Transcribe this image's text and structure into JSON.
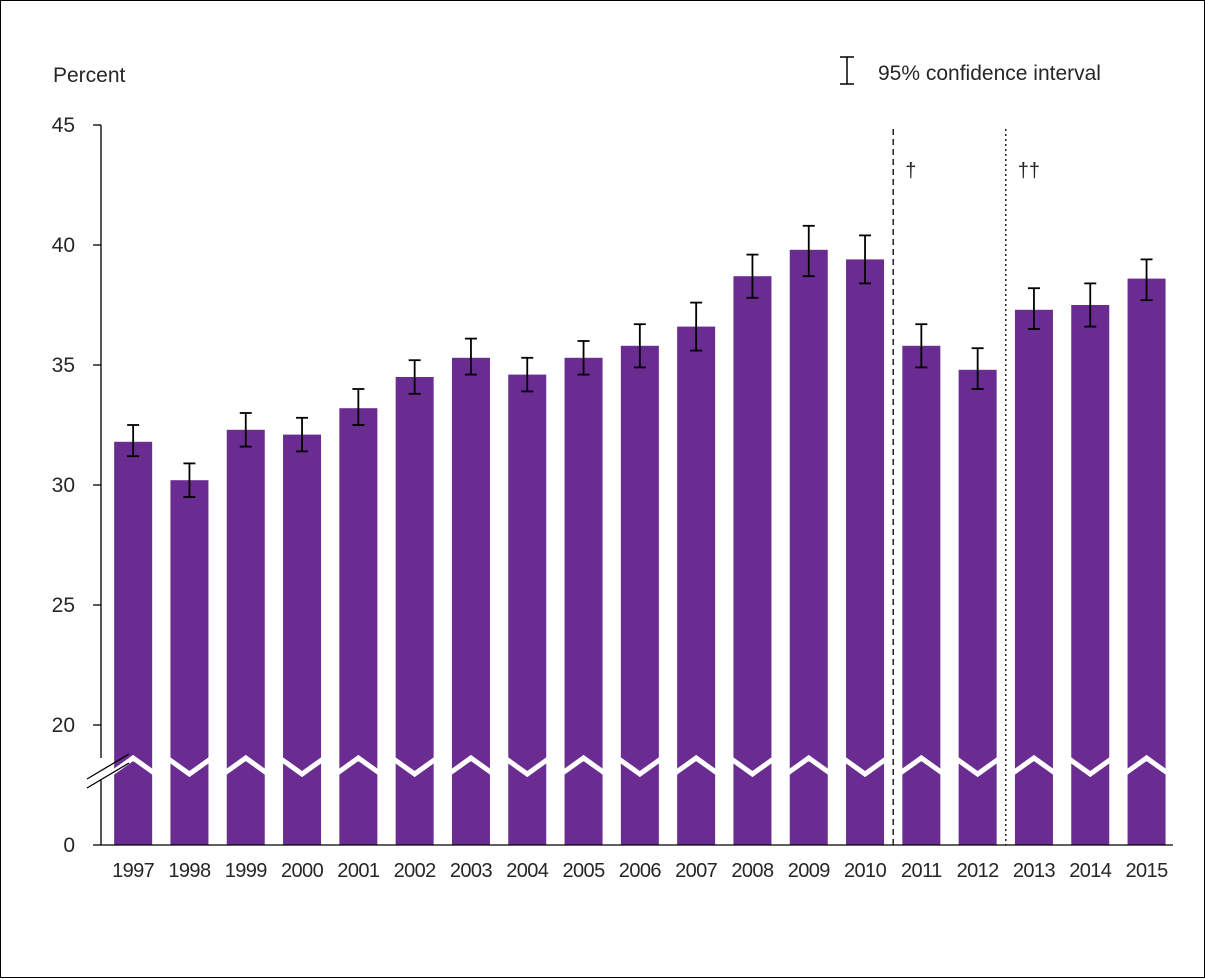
{
  "chart_data": {
    "type": "bar",
    "ylabel": "Percent",
    "legend": {
      "label": "95% confidence interval",
      "position": "top-right"
    },
    "categories": [
      "1997",
      "1998",
      "1999",
      "2000",
      "2001",
      "2002",
      "2003",
      "2004",
      "2005",
      "2006",
      "2007",
      "2008",
      "2009",
      "2010",
      "2011",
      "2012",
      "2013",
      "2014",
      "2015"
    ],
    "values": [
      31.8,
      30.2,
      32.3,
      32.1,
      33.2,
      34.5,
      35.3,
      34.6,
      35.3,
      35.8,
      36.6,
      38.7,
      39.8,
      39.4,
      35.8,
      34.8,
      37.3,
      37.5,
      38.6
    ],
    "ci_lower": [
      31.2,
      29.5,
      31.6,
      31.4,
      32.5,
      33.8,
      34.6,
      33.9,
      34.6,
      34.9,
      35.6,
      37.8,
      38.7,
      38.4,
      34.9,
      34.0,
      36.5,
      36.6,
      37.7
    ],
    "ci_upper": [
      32.5,
      30.9,
      33.0,
      32.8,
      34.0,
      35.2,
      36.1,
      35.3,
      36.0,
      36.7,
      37.6,
      39.6,
      40.8,
      40.4,
      36.7,
      35.7,
      38.2,
      38.4,
      39.4
    ],
    "yticks": [
      0,
      20,
      25,
      30,
      35,
      40,
      45
    ],
    "ylim": [
      20,
      45
    ],
    "axis_break": true,
    "grid": false,
    "series_color": "#6a2c91",
    "break_color": "#ffffff",
    "annotations": [
      {
        "text": "†",
        "after_category": "2010",
        "line_style": "dashed"
      },
      {
        "text": "††",
        "after_category": "2012",
        "line_style": "dotted"
      }
    ]
  }
}
